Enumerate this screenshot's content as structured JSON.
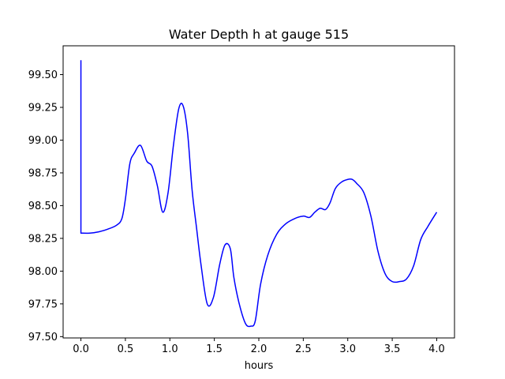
{
  "chart_data": {
    "type": "line",
    "title": "Water Depth h at gauge 515",
    "xlabel": "hours",
    "ylabel": "",
    "xlim": [
      -0.2,
      4.2
    ],
    "ylim": [
      97.49,
      99.72
    ],
    "xticks": [
      0.0,
      0.5,
      1.0,
      1.5,
      2.0,
      2.5,
      3.0,
      3.5,
      4.0
    ],
    "xtick_labels": [
      "0.0",
      "0.5",
      "1.0",
      "1.5",
      "2.0",
      "2.5",
      "3.0",
      "3.5",
      "4.0"
    ],
    "yticks": [
      97.5,
      97.75,
      98.0,
      98.25,
      98.5,
      98.75,
      99.0,
      99.25,
      99.5
    ],
    "ytick_labels": [
      "97.50",
      "97.75",
      "98.00",
      "98.25",
      "98.50",
      "98.75",
      "99.00",
      "99.25",
      "99.50"
    ],
    "grid": false,
    "series": [
      {
        "color": "#0000ff",
        "x": [
          0.0,
          0.0,
          0.1,
          0.2,
          0.3,
          0.4,
          0.46,
          0.5,
          0.55,
          0.6,
          0.67,
          0.74,
          0.8,
          0.86,
          0.92,
          0.98,
          1.04,
          1.1,
          1.15,
          1.2,
          1.25,
          1.3,
          1.35,
          1.42,
          1.49,
          1.56,
          1.62,
          1.68,
          1.72,
          1.78,
          1.85,
          1.91,
          1.96,
          2.02,
          2.1,
          2.2,
          2.3,
          2.4,
          2.5,
          2.57,
          2.63,
          2.69,
          2.75,
          2.8,
          2.86,
          2.93,
          3.0,
          3.05,
          3.1,
          3.18,
          3.26,
          3.34,
          3.42,
          3.5,
          3.58,
          3.66,
          3.74,
          3.82,
          3.9,
          4.0
        ],
        "y": [
          99.61,
          98.29,
          98.29,
          98.3,
          98.32,
          98.35,
          98.4,
          98.55,
          98.82,
          98.9,
          98.96,
          98.84,
          98.8,
          98.65,
          98.45,
          98.6,
          98.96,
          99.24,
          99.26,
          99.05,
          98.62,
          98.33,
          98.05,
          97.75,
          97.8,
          98.05,
          98.2,
          98.17,
          97.95,
          97.75,
          97.6,
          97.58,
          97.62,
          97.9,
          98.12,
          98.28,
          98.36,
          98.4,
          98.42,
          98.41,
          98.45,
          98.48,
          98.47,
          98.52,
          98.63,
          98.68,
          98.7,
          98.7,
          98.67,
          98.6,
          98.42,
          98.15,
          97.98,
          97.92,
          97.92,
          97.94,
          98.04,
          98.24,
          98.34,
          98.45
        ]
      }
    ]
  }
}
